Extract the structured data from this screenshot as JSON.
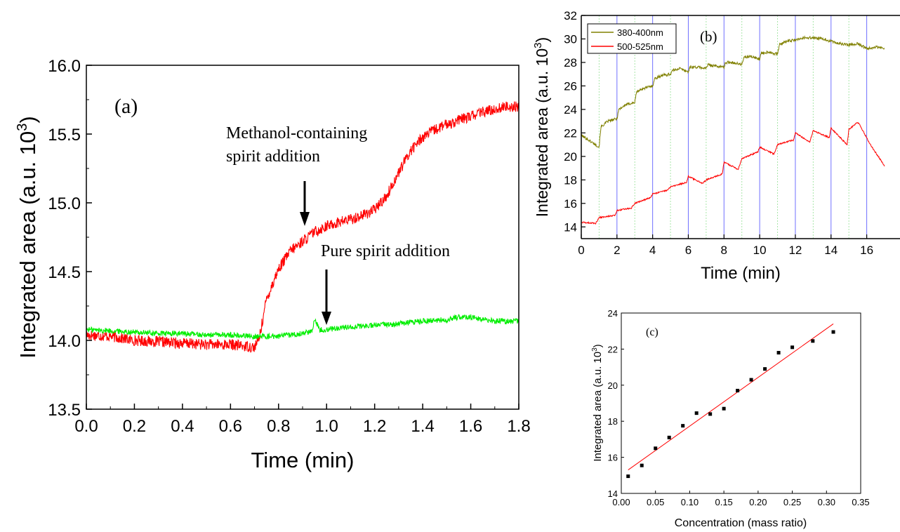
{
  "chart_data": [
    {
      "panel": "(a)",
      "type": "line",
      "xlabel": "Time (min)",
      "ylabel_main": "Integrated area (a.u. 10",
      "ylabel_sup": "3",
      "ylabel_end": ")",
      "xlim": [
        0.0,
        1.8
      ],
      "ylim": [
        13.5,
        16.0
      ],
      "xticks": [
        "0.0",
        "0.2",
        "0.4",
        "0.6",
        "0.8",
        "1.0",
        "1.2",
        "1.4",
        "1.6",
        "1.8"
      ],
      "yticks": [
        "13.5",
        "14.0",
        "14.5",
        "15.0",
        "15.5",
        "16.0"
      ],
      "annotations": [
        {
          "lines": [
            "Methanol-containing",
            "spirit addition"
          ],
          "arrow_at": [
            0.9,
            14.8
          ]
        },
        {
          "lines": [
            "Pure spirit addition"
          ],
          "arrow_at": [
            1.0,
            14.1
          ]
        }
      ],
      "series": [
        {
          "color": "#ff0000",
          "noise": 0.04,
          "x": [
            0.0,
            0.1,
            0.2,
            0.3,
            0.4,
            0.5,
            0.6,
            0.65,
            0.7,
            0.72,
            0.75,
            0.8,
            0.85,
            0.9,
            0.95,
            1.0,
            1.05,
            1.1,
            1.15,
            1.2,
            1.25,
            1.3,
            1.35,
            1.4,
            1.45,
            1.5,
            1.55,
            1.6,
            1.65,
            1.7,
            1.75,
            1.8
          ],
          "y": [
            14.04,
            14.03,
            14.0,
            13.99,
            13.98,
            13.97,
            13.97,
            13.96,
            13.95,
            14.02,
            14.3,
            14.52,
            14.65,
            14.72,
            14.79,
            14.83,
            14.86,
            14.88,
            14.91,
            14.95,
            15.05,
            15.22,
            15.38,
            15.48,
            15.53,
            15.57,
            15.6,
            15.63,
            15.66,
            15.68,
            15.7,
            15.7
          ]
        },
        {
          "color": "#00ee00",
          "noise": 0.02,
          "x": [
            0.0,
            0.1,
            0.2,
            0.3,
            0.4,
            0.5,
            0.6,
            0.7,
            0.75,
            0.8,
            0.85,
            0.9,
            0.94,
            0.95,
            0.97,
            1.0,
            1.1,
            1.2,
            1.3,
            1.4,
            1.5,
            1.55,
            1.6,
            1.65,
            1.7,
            1.8
          ],
          "y": [
            14.08,
            14.07,
            14.06,
            14.05,
            14.05,
            14.04,
            14.04,
            14.03,
            14.03,
            14.03,
            14.04,
            14.05,
            14.07,
            14.16,
            14.08,
            14.08,
            14.1,
            14.11,
            14.12,
            14.14,
            14.15,
            14.17,
            14.17,
            14.15,
            14.14,
            14.14
          ]
        }
      ]
    },
    {
      "panel": "(b)",
      "type": "line",
      "xlabel": "Time (min)",
      "ylabel_main": "Integrated area (a.u. 10",
      "ylabel_sup": "3",
      "ylabel_end": ")",
      "xlim": [
        0,
        17
      ],
      "ylim": [
        13,
        32
      ],
      "xticks": [
        "0",
        "2",
        "4",
        "6",
        "8",
        "10",
        "12",
        "14",
        "16"
      ],
      "yticks": [
        "14",
        "16",
        "18",
        "20",
        "22",
        "24",
        "26",
        "28",
        "30",
        "32"
      ],
      "legend": "top-left",
      "vertical_lines_blue": [
        2,
        4,
        6,
        8,
        10,
        12,
        14,
        16
      ],
      "vertical_lines_green": [
        1,
        3,
        5,
        7,
        9,
        11,
        13,
        15
      ],
      "series": [
        {
          "name": "380-400nm",
          "color": "#808000",
          "noise": 0.12,
          "x": [
            0,
            0.5,
            1.0,
            1.1,
            1.5,
            2.0,
            2.1,
            2.5,
            3.0,
            3.1,
            3.5,
            4.0,
            4.1,
            4.5,
            5.0,
            5.1,
            5.5,
            6.0,
            6.1,
            6.5,
            7.0,
            7.1,
            7.5,
            8.0,
            8.1,
            8.5,
            9.0,
            9.1,
            9.5,
            10.0,
            10.1,
            10.5,
            11.0,
            11.1,
            11.5,
            12.0,
            12.5,
            13.0,
            13.5,
            14.0,
            14.5,
            15.0,
            15.5,
            16.0,
            16.5,
            17.0
          ],
          "y": [
            21.8,
            21.3,
            20.8,
            22.5,
            23.0,
            23.2,
            24.0,
            24.4,
            24.6,
            25.5,
            25.8,
            26.0,
            26.6,
            26.9,
            27.0,
            27.3,
            27.5,
            27.2,
            27.6,
            27.6,
            27.5,
            27.8,
            27.7,
            27.6,
            28.0,
            28.0,
            27.8,
            28.4,
            28.5,
            28.3,
            28.8,
            28.9,
            28.7,
            29.5,
            29.8,
            29.9,
            30.1,
            30.1,
            30.0,
            29.8,
            29.6,
            29.5,
            29.6,
            29.2,
            29.3,
            29.2
          ]
        },
        {
          "name": "500-525nm",
          "color": "#ff0000",
          "noise": 0.06,
          "x": [
            0,
            0.8,
            1.0,
            1.5,
            1.9,
            2.0,
            2.8,
            3.0,
            3.9,
            4.0,
            4.8,
            5.0,
            5.9,
            6.0,
            6.8,
            7.0,
            7.9,
            8.0,
            8.8,
            9.0,
            9.9,
            10.0,
            10.8,
            11.0,
            11.9,
            12.0,
            12.8,
            13.0,
            13.9,
            14.0,
            14.9,
            15.0,
            15.5,
            15.6,
            16.2,
            17.0
          ],
          "y": [
            14.4,
            14.3,
            14.8,
            14.9,
            15.0,
            15.4,
            15.6,
            16.0,
            16.5,
            16.8,
            17.1,
            17.4,
            17.8,
            18.3,
            17.7,
            18.0,
            18.5,
            19.5,
            18.9,
            19.8,
            20.4,
            20.8,
            20.2,
            21.0,
            21.4,
            22.0,
            21.2,
            22.2,
            21.6,
            22.4,
            21.0,
            22.3,
            22.9,
            22.7,
            21.0,
            19.2
          ]
        }
      ]
    },
    {
      "panel": "(c)",
      "type": "scatter",
      "xlabel": "Concentration (mass ratio)",
      "ylabel_main": "Integrated area (a.u. 10",
      "ylabel_sup": "3",
      "ylabel_end": ")",
      "xlim": [
        0.0,
        0.35
      ],
      "ylim": [
        14,
        24
      ],
      "xticks": [
        "0.00",
        "0.05",
        "0.10",
        "0.15",
        "0.20",
        "0.25",
        "0.30",
        "0.35"
      ],
      "yticks": [
        "14",
        "16",
        "18",
        "20",
        "22",
        "24"
      ],
      "points_x": [
        0.01,
        0.03,
        0.05,
        0.07,
        0.09,
        0.11,
        0.13,
        0.15,
        0.17,
        0.19,
        0.21,
        0.23,
        0.25,
        0.28,
        0.31
      ],
      "points_y": [
        14.95,
        15.55,
        16.5,
        17.1,
        17.75,
        18.45,
        18.4,
        18.7,
        19.7,
        20.3,
        20.9,
        21.8,
        22.1,
        22.45,
        22.95
      ],
      "fit_line": {
        "x": [
          0.01,
          0.31
        ],
        "y": [
          15.3,
          23.4
        ],
        "color": "#ff0000"
      }
    }
  ]
}
